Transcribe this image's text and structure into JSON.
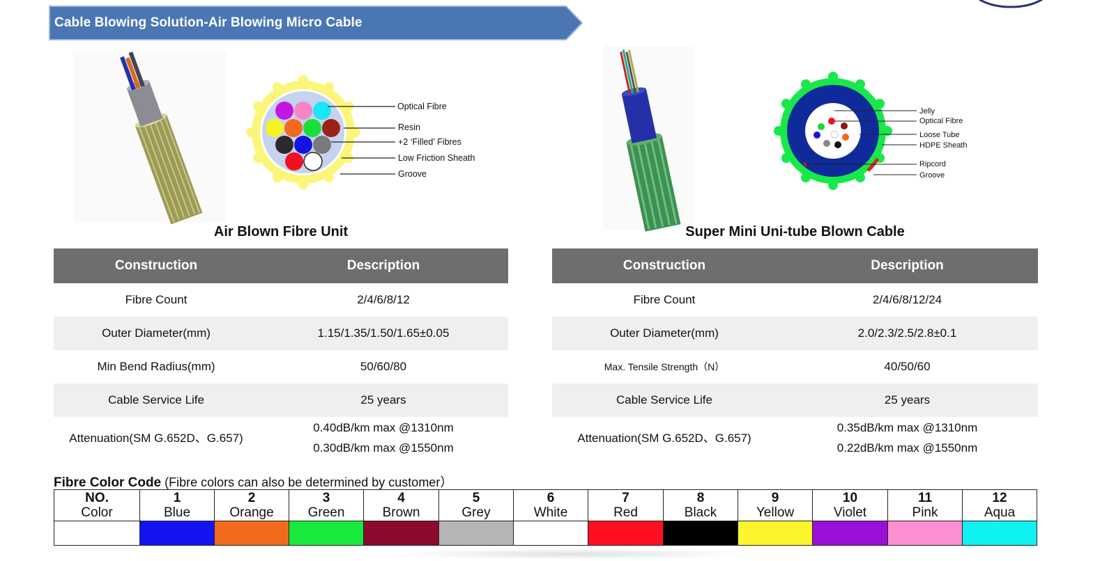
{
  "banner": {
    "title": "Cable Blowing Solution-Air Blowing Micro Cable"
  },
  "left": {
    "title": "Air Blown Fibre Unit",
    "diagram_labels": [
      "Optical Fibre",
      "Resin",
      "+2 ‘Filled’ Fibres",
      "Low Friction Sheath",
      "Groove"
    ],
    "headers": [
      "Construction",
      "Description"
    ],
    "rows": [
      {
        "c": "Fibre Count",
        "d1": "2/4/6/8/12",
        "d2": ""
      },
      {
        "c": "Outer Diameter(mm)",
        "d1": "1.15/1.35/1.50/1.65±0.05",
        "d2": ""
      },
      {
        "c": "Min Bend Radius(mm)",
        "d1": "50/60/80",
        "d2": ""
      },
      {
        "c": "Cable Service Life",
        "d1": "25 years",
        "d2": ""
      },
      {
        "c": "Attenuation(SM G.652D、G.657)",
        "d1": "0.40dB/km max @1310nm",
        "d2": "0.30dB/km max @1550nm"
      }
    ]
  },
  "right": {
    "title": "Super Mini Uni-tube Blown Cable",
    "diagram_labels": [
      "Jelly",
      "Optical Fibre",
      "Loose Tube",
      "HDPE Sheath",
      "Ripcord",
      "Groove"
    ],
    "headers": [
      "Construction",
      "Description"
    ],
    "rows": [
      {
        "c": "Fibre Count",
        "d1": "2/4/6/8/12/24",
        "d2": ""
      },
      {
        "c": "Outer Diameter(mm)",
        "d1": "2.0/2.3/2.5/2.8±0.1",
        "d2": ""
      },
      {
        "c": "Max. Tensile Strength（N）",
        "d1": "40/50/60",
        "d2": ""
      },
      {
        "c": "Cable Service Life",
        "d1": "25 years",
        "d2": ""
      },
      {
        "c": "Attenuation(SM G.652D、G.657)",
        "d1": "0.35dB/km max @1310nm",
        "d2": "0.22dB/km max @1550nm"
      }
    ]
  },
  "color_code": {
    "title": "Fibre Color Code",
    "note": "(Fibre colors can also be determined by customer）",
    "header_no": "NO.",
    "header_color": "Color",
    "items": [
      {
        "no": "1",
        "name": "Blue",
        "hex": "#1414f0"
      },
      {
        "no": "2",
        "name": "Orange",
        "hex": "#f36a1e"
      },
      {
        "no": "3",
        "name": "Green",
        "hex": "#17ea3d"
      },
      {
        "no": "4",
        "name": "Brown",
        "hex": "#8a0b2e"
      },
      {
        "no": "5",
        "name": "Grey",
        "hex": "#b5b5b5"
      },
      {
        "no": "6",
        "name": "White",
        "hex": "#ffffff"
      },
      {
        "no": "7",
        "name": "Red",
        "hex": "#ff1020"
      },
      {
        "no": "8",
        "name": "Black",
        "hex": "#000000"
      },
      {
        "no": "9",
        "name": "Yellow",
        "hex": "#fbf52d"
      },
      {
        "no": "10",
        "name": "Violet",
        "hex": "#9a10d8"
      },
      {
        "no": "11",
        "name": "Pink",
        "hex": "#fb8fcf"
      },
      {
        "no": "12",
        "name": "Aqua",
        "hex": "#0ef2f2"
      }
    ]
  }
}
